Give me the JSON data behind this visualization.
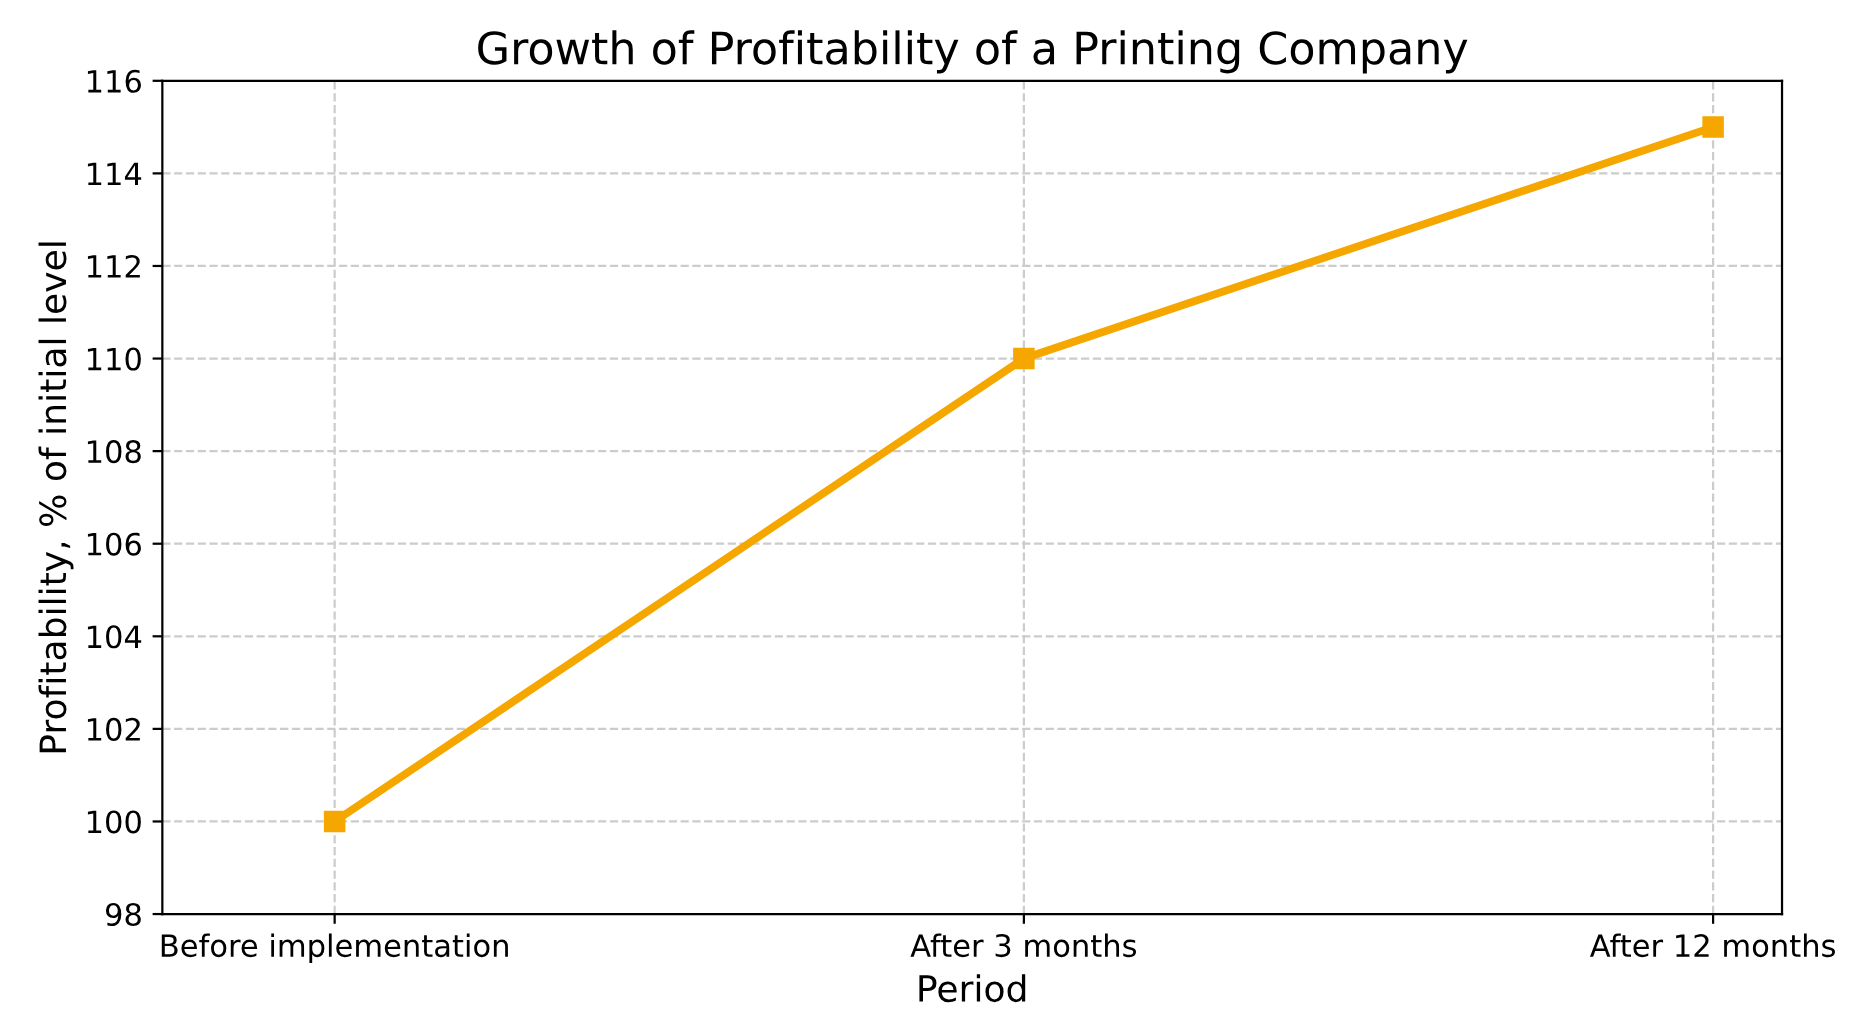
{
  "chart_data": {
    "type": "line",
    "title": "Growth of Profitability of a Printing Company",
    "xlabel": "Period",
    "ylabel": "Profitability, % of initial level",
    "categories": [
      "Before implementation",
      "After 3 months",
      "After 12 months"
    ],
    "series": [
      {
        "color": "#f5a700",
        "values": [
          100,
          110,
          115
        ]
      }
    ],
    "ylim": [
      98,
      116
    ],
    "yticks": [
      98,
      100,
      102,
      104,
      106,
      108,
      110,
      112,
      114,
      116
    ],
    "grid": true,
    "marker": "square",
    "line_style": "solid"
  }
}
